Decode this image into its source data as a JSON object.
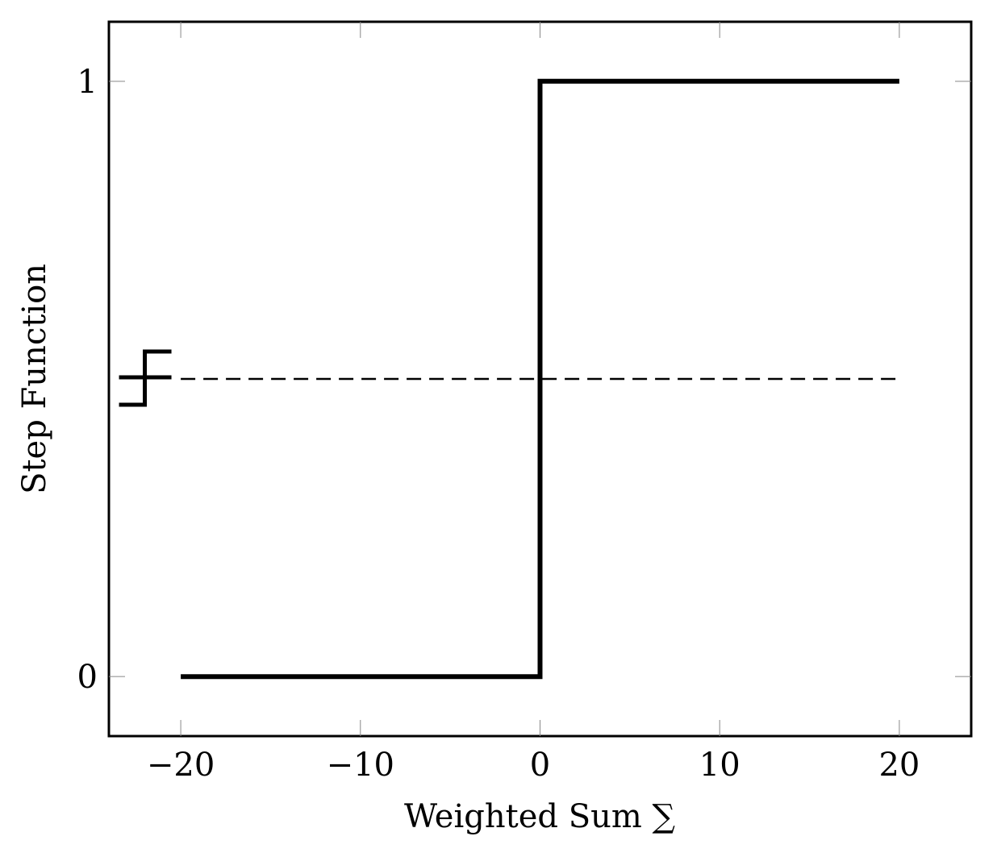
{
  "chart_data": {
    "type": "line",
    "xlabel": "Weighted Sum ∑",
    "ylabel": "Step Function",
    "xlim": [
      -24,
      24
    ],
    "ylim": [
      -0.1,
      1.1
    ],
    "x_ticks": [
      -20,
      -10,
      0,
      10,
      20
    ],
    "x_tick_labels": [
      "−20",
      "−10",
      "0",
      "10",
      "20"
    ],
    "y_ticks": [
      0,
      1
    ],
    "y_tick_labels": [
      "0",
      "1"
    ],
    "grid": false,
    "series": [
      {
        "style": "solid",
        "color": "#000000",
        "points": [
          [
            -20,
            0
          ],
          [
            0,
            0
          ],
          [
            0,
            1
          ],
          [
            20,
            1
          ]
        ]
      },
      {
        "style": "dashed",
        "color": "#000000",
        "points": [
          [
            -20,
            0.5
          ],
          [
            20,
            0.5
          ]
        ]
      }
    ],
    "annotations": [
      {
        "name": "step-glyph-icon",
        "x": -22,
        "y": 0.5
      }
    ]
  }
}
